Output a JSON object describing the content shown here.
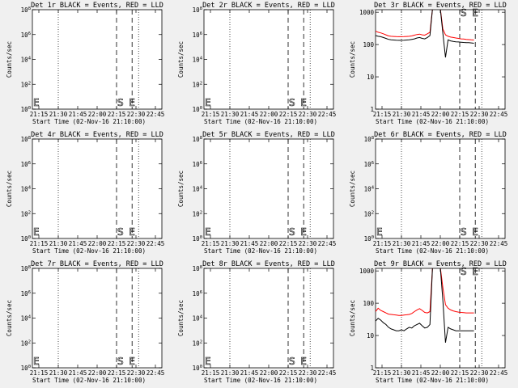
{
  "figure": {
    "background": "#f0f0f0",
    "title_template": "Det {d} BLACK = Events, RED = LLD",
    "xlabel": "Start Time (02-Nov-16 21:10:00)",
    "ylabel": "Counts/sec",
    "colors": {
      "events": "#000000",
      "lld": "#ff0000"
    }
  },
  "chart_data": [
    {
      "type": "line",
      "det": "1r",
      "title": "Det 1r BLACK = Events, RED = LLD",
      "has_data": false,
      "xlabel": "Start Time (02-Nov-16 21:10:00)",
      "ylabel": "Counts/sec",
      "x_ticks": [
        "21:15",
        "21:30",
        "21:45",
        "22:00",
        "22:15",
        "22:30",
        "22:45"
      ],
      "y_scale": "log",
      "ylim": [
        1,
        100000000
      ],
      "y_ticks": [
        "10^0",
        "10^2",
        "10^4",
        "10^6",
        "10^8"
      ],
      "markers": {
        "E_left": "21:11",
        "S": "22:15",
        "E": "22:27"
      },
      "dotted_lines": [
        "21:30",
        "22:32"
      ],
      "series": []
    },
    {
      "type": "line",
      "det": "2r",
      "title": "Det 2r BLACK = Events, RED = LLD",
      "has_data": false,
      "xlabel": "Start Time (02-Nov-16 21:10:00)",
      "ylabel": "Counts/sec",
      "x_ticks": [
        "21:15",
        "21:30",
        "21:45",
        "22:00",
        "22:15",
        "22:30",
        "22:45"
      ],
      "y_scale": "log",
      "ylim": [
        1,
        100000000
      ],
      "y_ticks": [
        "10^0",
        "10^2",
        "10^4",
        "10^6",
        "10^8"
      ],
      "markers": {
        "E_left": "21:11",
        "S": "22:15",
        "E": "22:27"
      },
      "dotted_lines": [
        "21:30",
        "22:32"
      ],
      "series": []
    },
    {
      "type": "line",
      "det": "3r",
      "title": "Det 3r BLACK = Events, RED = LLD",
      "has_data": true,
      "xlabel": "Start Time (02-Nov-16 21:10:00)",
      "ylabel": "Counts/sec",
      "x_ticks": [
        "21:15",
        "21:30",
        "21:45",
        "22:00",
        "22:15",
        "22:30",
        "22:45"
      ],
      "y_scale": "log",
      "ylim": [
        1,
        1200
      ],
      "y_ticks": [
        "1",
        "10",
        "100",
        "1000"
      ],
      "markers": {
        "S": "22:15",
        "E": "22:27"
      },
      "dotted_lines": [
        "21:30",
        "22:32"
      ],
      "x_start": "21:10",
      "x_step_min": 2,
      "series": [
        {
          "color": "#ff0000",
          "values": [
            260,
            240,
            230,
            215,
            200,
            185,
            180,
            178,
            176,
            175,
            175,
            176,
            178,
            180,
            185,
            195,
            205,
            210,
            200,
            195,
            215,
            240,
            1300,
            1300,
            1300,
            1300,
            300,
            200,
            180,
            170,
            165,
            160,
            155,
            150,
            148,
            145,
            142,
            140,
            138
          ]
        },
        {
          "color": "#000000",
          "values": [
            190,
            180,
            175,
            165,
            155,
            145,
            140,
            138,
            136,
            135,
            135,
            136,
            138,
            140,
            145,
            150,
            160,
            165,
            155,
            150,
            165,
            190,
            1300,
            1300,
            1300,
            1300,
            220,
            40,
            140,
            130,
            125,
            122,
            120,
            118,
            116,
            115,
            114,
            112,
            110
          ]
        }
      ]
    },
    {
      "type": "line",
      "det": "4r",
      "title": "Det 4r BLACK = Events, RED = LLD",
      "has_data": false,
      "xlabel": "Start Time (02-Nov-16 21:10:00)",
      "ylabel": "Counts/sec",
      "x_ticks": [
        "21:15",
        "21:30",
        "21:45",
        "22:00",
        "22:15",
        "22:30",
        "22:45"
      ],
      "y_scale": "log",
      "ylim": [
        1,
        100000000
      ],
      "y_ticks": [
        "10^0",
        "10^2",
        "10^4",
        "10^6",
        "10^8"
      ],
      "markers": {
        "E_left": "21:11",
        "S": "22:15",
        "E": "22:27"
      },
      "dotted_lines": [
        "21:30",
        "22:32"
      ],
      "series": []
    },
    {
      "type": "line",
      "det": "5r",
      "title": "Det 5r BLACK = Events, RED = LLD",
      "has_data": false,
      "xlabel": "Start Time (02-Nov-16 21:10:00)",
      "ylabel": "Counts/sec",
      "x_ticks": [
        "21:15",
        "21:30",
        "21:45",
        "22:00",
        "22:15",
        "22:30",
        "22:45"
      ],
      "y_scale": "log",
      "ylim": [
        1,
        100000000
      ],
      "y_ticks": [
        "10^0",
        "10^2",
        "10^4",
        "10^6",
        "10^8"
      ],
      "markers": {
        "E_left": "21:11",
        "S": "22:15",
        "E": "22:27"
      },
      "dotted_lines": [
        "21:30",
        "22:32"
      ],
      "series": []
    },
    {
      "type": "line",
      "det": "6r",
      "title": "Det 6r BLACK = Events, RED = LLD",
      "has_data": false,
      "xlabel": "Start Time (02-Nov-16 21:10:00)",
      "ylabel": "Counts/sec",
      "x_ticks": [
        "21:15",
        "21:30",
        "21:45",
        "22:00",
        "22:15",
        "22:30",
        "22:45"
      ],
      "y_scale": "log",
      "ylim": [
        1,
        100000000
      ],
      "y_ticks": [
        "10^0",
        "10^2",
        "10^4",
        "10^6",
        "10^8"
      ],
      "markers": {
        "E_left": "21:11",
        "S": "22:15",
        "E": "22:27"
      },
      "dotted_lines": [
        "21:30",
        "22:32"
      ],
      "series": []
    },
    {
      "type": "line",
      "det": "7r",
      "title": "Det 7r BLACK = Events, RED = LLD",
      "has_data": false,
      "xlabel": "Start Time (02-Nov-16 21:10:00)",
      "ylabel": "Counts/sec",
      "x_ticks": [
        "21:15",
        "21:30",
        "21:45",
        "22:00",
        "22:15",
        "22:30",
        "22:45"
      ],
      "y_scale": "log",
      "ylim": [
        1,
        100000000
      ],
      "y_ticks": [
        "10^0",
        "10^2",
        "10^4",
        "10^6",
        "10^8"
      ],
      "markers": {
        "E_left": "21:11",
        "S": "22:15",
        "E": "22:27"
      },
      "dotted_lines": [
        "21:30",
        "22:32"
      ],
      "series": []
    },
    {
      "type": "line",
      "det": "8r",
      "title": "Det 8r BLACK = Events, RED = LLD",
      "has_data": false,
      "xlabel": "Start Time (02-Nov-16 21:10:00)",
      "ylabel": "Counts/sec",
      "x_ticks": [
        "21:15",
        "21:30",
        "21:45",
        "22:00",
        "22:15",
        "22:30",
        "22:45"
      ],
      "y_scale": "log",
      "ylim": [
        1,
        100000000
      ],
      "y_ticks": [
        "10^0",
        "10^2",
        "10^4",
        "10^6",
        "10^8"
      ],
      "markers": {
        "E_left": "21:11",
        "S": "22:15",
        "E": "22:27"
      },
      "dotted_lines": [
        "21:30",
        "22:32"
      ],
      "series": []
    },
    {
      "type": "line",
      "det": "9r",
      "title": "Det 9r BLACK = Events, RED = LLD",
      "has_data": true,
      "xlabel": "Start Time (02-Nov-16 21:10:00)",
      "ylabel": "Counts/sec",
      "x_ticks": [
        "21:15",
        "21:30",
        "21:45",
        "22:00",
        "22:15",
        "22:30",
        "22:45"
      ],
      "y_scale": "log",
      "ylim": [
        1,
        1200
      ],
      "y_ticks": [
        "1",
        "10",
        "100",
        "1000"
      ],
      "markers": {
        "S": "22:15",
        "E": "22:27"
      },
      "dotted_lines": [
        "21:30",
        "22:32"
      ],
      "x_start": "21:10",
      "x_step_min": 2,
      "series": [
        {
          "color": "#ff0000",
          "values": [
            55,
            70,
            60,
            55,
            50,
            46,
            45,
            44,
            43,
            42,
            42,
            43,
            44,
            45,
            48,
            55,
            62,
            68,
            60,
            52,
            50,
            55,
            1300,
            1300,
            1300,
            1300,
            300,
            90,
            70,
            62,
            58,
            55,
            53,
            52,
            51,
            50,
            50,
            50,
            50
          ]
        },
        {
          "color": "#000000",
          "values": [
            28,
            34,
            30,
            25,
            22,
            18,
            16,
            15,
            14,
            14,
            15,
            14,
            16,
            18,
            17,
            20,
            22,
            24,
            20,
            17,
            18,
            22,
            1300,
            1300,
            1300,
            1300,
            120,
            6,
            18,
            16,
            15,
            14,
            14,
            14,
            14,
            14,
            14,
            14,
            14
          ]
        }
      ]
    }
  ]
}
